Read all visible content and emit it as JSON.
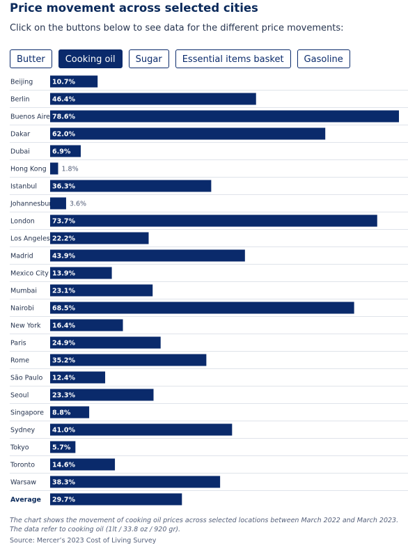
{
  "title": "Price movement across selected cities",
  "subtitle": "Click on the buttons below to see data for the different price movements:",
  "buttons": [
    "Butter",
    "Cooking oil",
    "Sugar",
    "Essential items basket",
    "Gasoline"
  ],
  "active_button": 1,
  "chart_data": {
    "type": "bar",
    "orientation": "horizontal",
    "color": "#0a2a6b",
    "categories": [
      "Beijing",
      "Berlin",
      "Buenos Aires",
      "Dakar",
      "Dubai",
      "Hong Kong",
      "Istanbul",
      "Johannesburg",
      "London",
      "Los Angeles",
      "Madrid",
      "Mexico City",
      "Mumbai",
      "Nairobi",
      "New York",
      "Paris",
      "Rome",
      "São Paulo",
      "Seoul",
      "Singapore",
      "Sydney",
      "Tokyo",
      "Toronto",
      "Warsaw",
      "Average"
    ],
    "values": [
      10.7,
      46.4,
      78.6,
      62.0,
      6.9,
      1.8,
      36.3,
      3.6,
      73.7,
      22.2,
      43.9,
      13.9,
      23.1,
      68.5,
      16.4,
      24.9,
      35.2,
      12.4,
      23.3,
      8.8,
      41.0,
      5.7,
      14.6,
      38.3,
      29.7
    ],
    "value_labels": [
      "10.7%",
      "46.4%",
      "78.6%",
      "62.0%",
      "6.9%",
      "1.8%",
      "36.3%",
      "3.6%",
      "73.7%",
      "22.2%",
      "43.9%",
      "13.9%",
      "23.1%",
      "68.5%",
      "16.4%",
      "24.9%",
      "35.2%",
      "12.4%",
      "23.3%",
      "8.8%",
      "41.0%",
      "5.7%",
      "14.6%",
      "38.3%",
      "29.7%"
    ]
  },
  "note": "The chart shows the movement of cooking oil prices across selected locations between March 2022 and March 2023. The data refer to cooking oil (1lt / 33.8 oz / 920 gr).",
  "source": "Source: Mercer’s 2023 Cost of Living Survey"
}
